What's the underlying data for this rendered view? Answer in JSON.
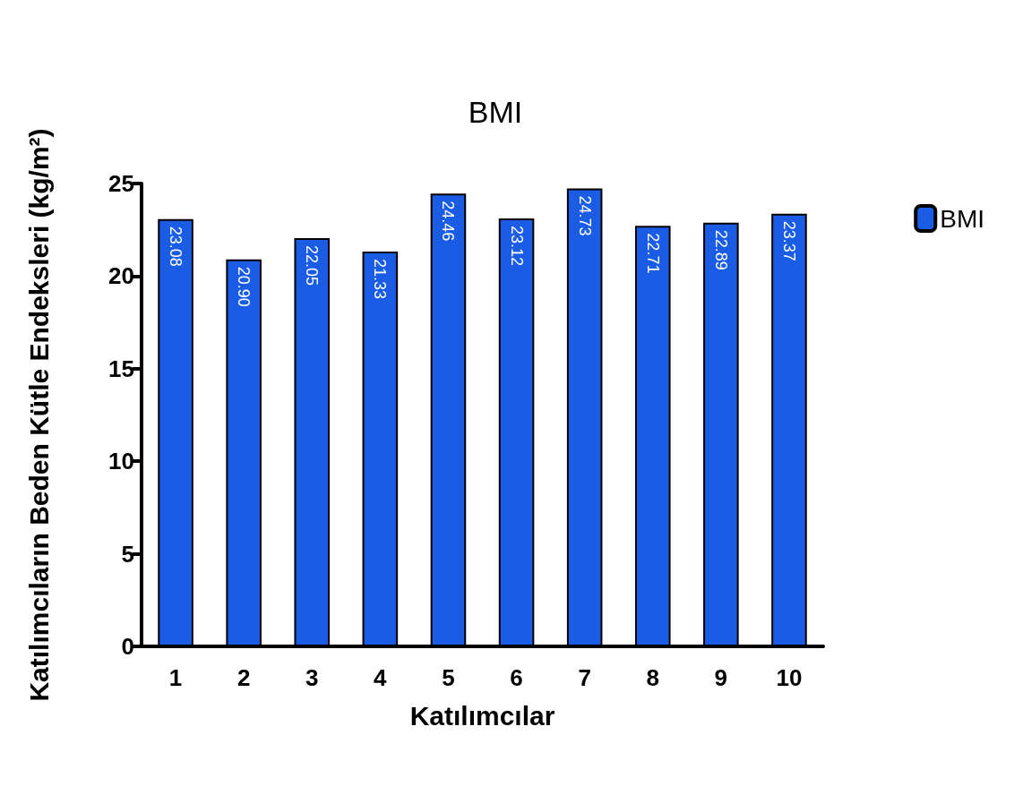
{
  "chart_data": {
    "type": "bar",
    "title": "BMI",
    "xlabel": "Katılımcılar",
    "ylabel": "Katılımcıların Beden Kütle Endeksleri (kg/m²)",
    "categories": [
      "1",
      "2",
      "3",
      "4",
      "5",
      "6",
      "7",
      "8",
      "9",
      "10"
    ],
    "series": [
      {
        "name": "BMI",
        "color": "#1a5ce3",
        "values": [
          23.08,
          20.9,
          22.05,
          21.33,
          24.46,
          23.12,
          24.73,
          22.71,
          22.89,
          23.37
        ],
        "value_labels": [
          "23.08",
          "20.90",
          "22.05",
          "21.33",
          "24.46",
          "23.12",
          "24.73",
          "22.71",
          "22.89",
          "23.37"
        ]
      }
    ],
    "ylim": [
      0,
      25
    ],
    "yticks": [
      0,
      5,
      10,
      15,
      20,
      25
    ],
    "grid": false,
    "legend": "top right"
  }
}
